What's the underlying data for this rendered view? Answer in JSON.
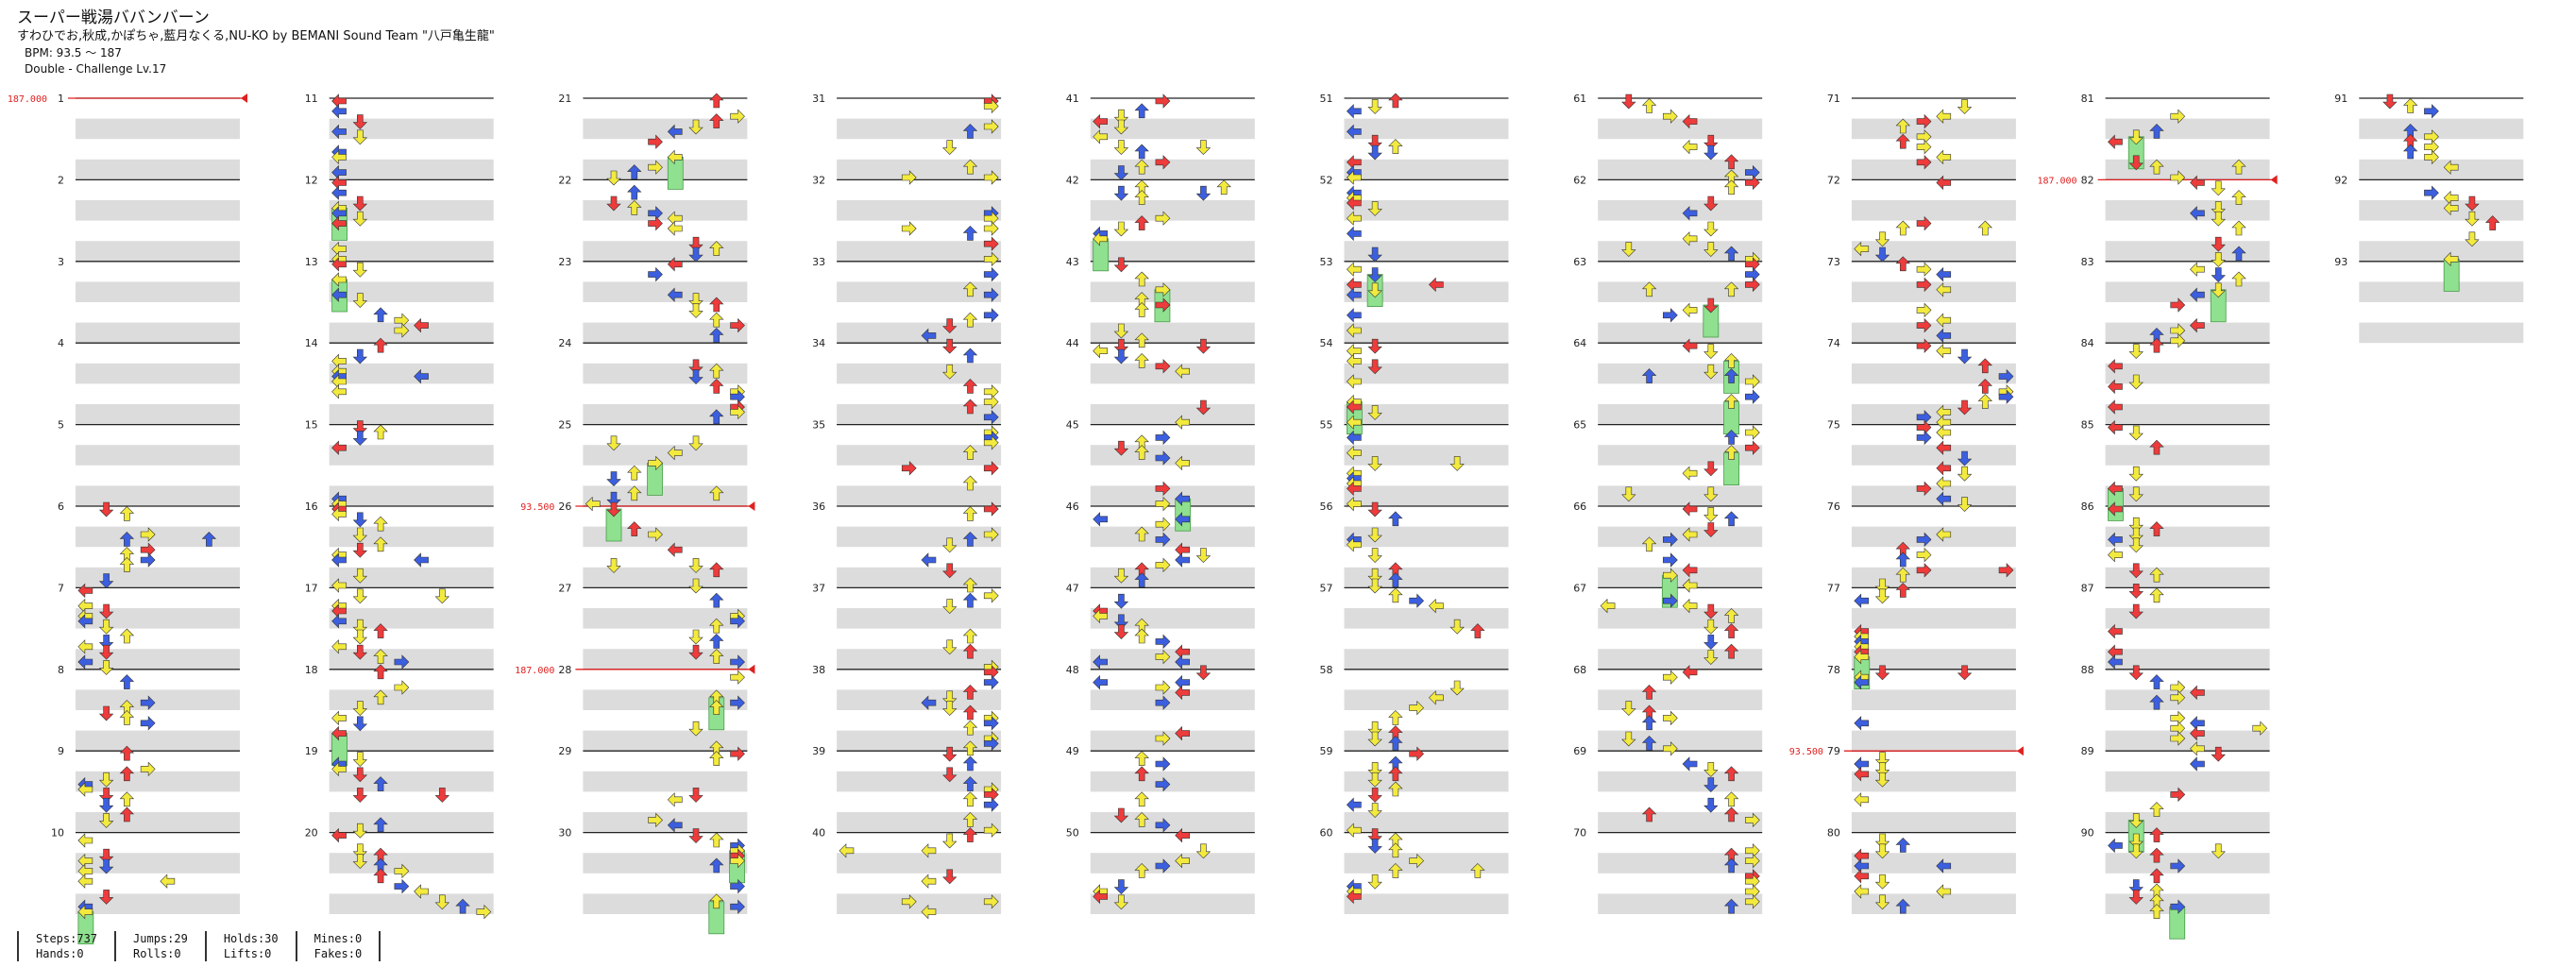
{
  "song": {
    "title": "スーパー戦湯ババンバーン",
    "artist": "すわひでお,秋成,かぽちゃ,藍月なくる,NU-KO by BEMANI Sound Team \"八戸亀生龍\"",
    "bpm": "BPM: 93.5 ～ 187",
    "difficulty": "Double - Challenge Lv.17"
  },
  "measure_labels": [
    "1",
    "2",
    "3",
    "4",
    "5",
    "6",
    "7",
    "8",
    "9",
    "10",
    "11",
    "12",
    "13",
    "14",
    "15",
    "16",
    "17",
    "18",
    "19",
    "20",
    "21",
    "22",
    "23",
    "24",
    "25",
    "26",
    "27",
    "28",
    "29",
    "30",
    "31",
    "32",
    "33",
    "34",
    "35",
    "36",
    "37",
    "38",
    "39",
    "40",
    "41",
    "42",
    "43",
    "44",
    "45",
    "46",
    "47",
    "48",
    "49",
    "50",
    "51",
    "52",
    "53",
    "54",
    "55",
    "56",
    "57",
    "58",
    "59",
    "60",
    "61",
    "62",
    "63",
    "64",
    "65",
    "66",
    "67",
    "68",
    "69",
    "70",
    "71",
    "72",
    "73",
    "74",
    "75",
    "76",
    "77",
    "78",
    "79",
    "80",
    "81",
    "82",
    "83",
    "84",
    "85",
    "86",
    "87",
    "88",
    "89",
    "90",
    "91",
    "92",
    "93"
  ],
  "bpm_changes": [
    {
      "measure": 1,
      "label": "187.000"
    },
    {
      "measure": 26,
      "label": "93.500"
    },
    {
      "measure": 28,
      "label": "187.000"
    },
    {
      "measure": 79,
      "label": "93.500"
    },
    {
      "measure": 82,
      "label": "187.000"
    }
  ],
  "stats": {
    "steps": "Steps:737",
    "hands": "Hands:0",
    "jumps": "Jumps:29",
    "rolls": "Rolls:0",
    "holds": "Holds:30",
    "lifts": "Lifts:0",
    "mines": "Mines:0",
    "fakes": "Fakes:0"
  },
  "colors": {
    "red": "#ee3b3b",
    "blue": "#3c5fe0",
    "yellow": "#f3ea3e",
    "hold": "#8fe08f",
    "stripe": "#dcdcdc",
    "bpm": "#e02020"
  }
}
